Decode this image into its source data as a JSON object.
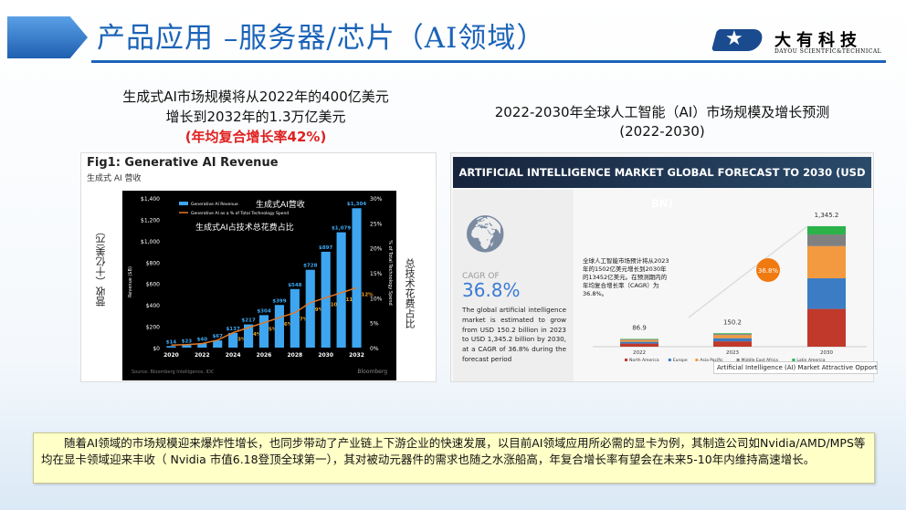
{
  "header": {
    "title": "产品应用 –服务器/芯片（AI领域）",
    "logo_cn": "大有科技",
    "logo_en": "DAYOU SCIENTFIC&TECHNICAL"
  },
  "left": {
    "heading1": "生成式AI市场规模将从2022年的400亿美元",
    "heading2": "增长到2032年的1.3万亿美元",
    "heading3": "(年均复合增长率42%)"
  },
  "right": {
    "heading1": "2022-2030年全球人工智能（AI）市场规模及增长预测",
    "heading2": "(2022-2030)"
  },
  "chart_data": [
    {
      "type": "bar",
      "title": "Fig1: Generative AI Revenue",
      "subtitle": "生成式 AI 营收",
      "ylabel": "Revenue ($B)",
      "ylabel_cn": "营收（十亿美元）",
      "y2label": "% of Total Technology Spend",
      "y2label_cn": "总技术花费占比",
      "ylim": [
        0,
        1400
      ],
      "y2lim": [
        0,
        30
      ],
      "yticks": [
        "$0",
        "$200",
        "$400",
        "$600",
        "$800",
        "$1,000",
        "$1,200",
        "$1,400"
      ],
      "y2ticks": [
        "0%",
        "5%",
        "10%",
        "15%",
        "20%",
        "25%",
        "30%"
      ],
      "x": [
        2020,
        2021,
        2022,
        2023,
        2024,
        2025,
        2026,
        2027,
        2028,
        2029,
        2030,
        2031,
        2032
      ],
      "xticks": [
        "2020",
        "2022",
        "2024",
        "2026",
        "2028",
        "2030",
        "2032"
      ],
      "series": [
        {
          "name": "Generative AI Revenue",
          "name_cn": "生成式AI营收",
          "values": [
            14,
            23,
            40,
            67,
            137,
            217,
            304,
            399,
            548,
            728,
            897,
            1079,
            1304
          ],
          "labels": [
            "$14",
            "$23",
            "$40",
            "$67",
            "$137",
            "$217",
            "$304",
            "$399",
            "$548",
            "$728",
            "$897",
            "$1,079",
            "$1,304"
          ],
          "color": "#3ea6f0"
        },
        {
          "name": "Generative AI as a % of Total Technology Spend",
          "name_cn": "生成式AI占技术总花费占比",
          "values": [
            0.5,
            0.6,
            0.8,
            1.5,
            3,
            4,
            5,
            6,
            7,
            9,
            10,
            11,
            12
          ],
          "labels": [
            "",
            "",
            "",
            "",
            "3%",
            "4%",
            "5%",
            "6%",
            "7%",
            "9%",
            "10%",
            "11%",
            "12%"
          ],
          "color": "#e0782a"
        }
      ],
      "source": "Source: Bloomberg Intelligence, IDC",
      "brand": "Bloomberg"
    },
    {
      "type": "bar",
      "stacked": true,
      "title": "ARTIFICIAL INTELLIGENCE MARKET GLOBAL FORECAST TO 2030 (USD BN)",
      "categories": [
        "2022",
        "2023",
        "2030"
      ],
      "totals": [
        "86.9",
        "150.2",
        "1,345.2"
      ],
      "series": [
        {
          "name": "North America",
          "values": [
            35,
            60,
            422
          ],
          "color": "#c0392b"
        },
        {
          "name": "Europe",
          "values": [
            20,
            35,
            342
          ],
          "color": "#3b7cc4"
        },
        {
          "name": "Asia Pacific",
          "values": [
            20,
            35,
            359
          ],
          "color": "#f39a40"
        },
        {
          "name": "Middle East Africa",
          "values": [
            7,
            12,
            130
          ],
          "color": "#808080"
        },
        {
          "name": "Latin America",
          "values": [
            5,
            8,
            93
          ],
          "color": "#2bb34a"
        }
      ],
      "cagr_label": "CAGR OF",
      "cagr": "36.8%",
      "cagr_bubble": "36.8%",
      "description": "The global artificial intelligence market is estimated to grow from USD 150.2 billion in 2023 to USD 1,345.2 billion by 2030, at a CAGR of 36.8% during the forecast period",
      "note_cn": "全球人工智能市场预计将从2023年的1502亿美元增长到2030年的13452亿美元。在预测期内的年均复合增长率（CAGR）为36.8%。",
      "tooltip": "Artificial Intelligence (AI) Market Attractive Opportuni"
    }
  ],
  "note": "随着AI领域的市场规模迎来爆炸性增长，也同步带动了产业链上下游企业的快速发展，以目前AI领域应用所必需的显卡为例，其制造公司如Nvidia/AMD/MPS等均在显卡领域迎来丰收（ Nvidia 市值6.18登顶全球第一），其对被动元器件的需求也随之水涨船高，年复合增长率有望会在未来5-10年内维持高速增长。"
}
